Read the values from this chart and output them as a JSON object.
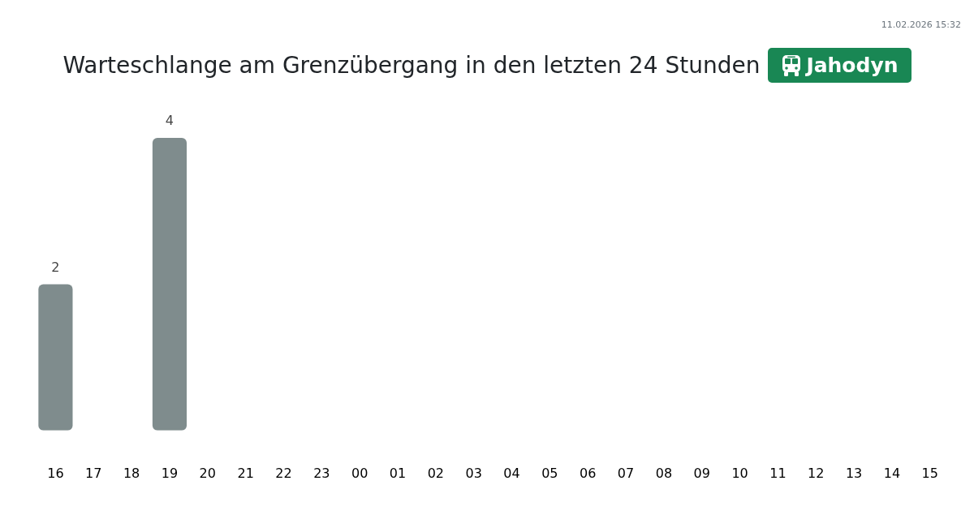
{
  "chart_data": {
    "type": "bar",
    "title": "Warteschlange am Grenzübergang in den letzten 24 Stunden",
    "subtitle": "Jahodyn",
    "annotations": [
      "11.02.2026 15:32"
    ],
    "categories": [
      "16",
      "17",
      "18",
      "19",
      "20",
      "21",
      "22",
      "23",
      "00",
      "01",
      "02",
      "03",
      "04",
      "05",
      "06",
      "07",
      "08",
      "09",
      "10",
      "11",
      "12",
      "13",
      "14",
      "15"
    ],
    "values": [
      2,
      null,
      null,
      4,
      null,
      null,
      null,
      null,
      null,
      null,
      null,
      null,
      null,
      null,
      null,
      null,
      null,
      null,
      null,
      null,
      null,
      null,
      null,
      null
    ],
    "color": "#7f8c8d",
    "data_labels": true,
    "grid": false,
    "legend": false,
    "tick_labels": "x"
  }
}
